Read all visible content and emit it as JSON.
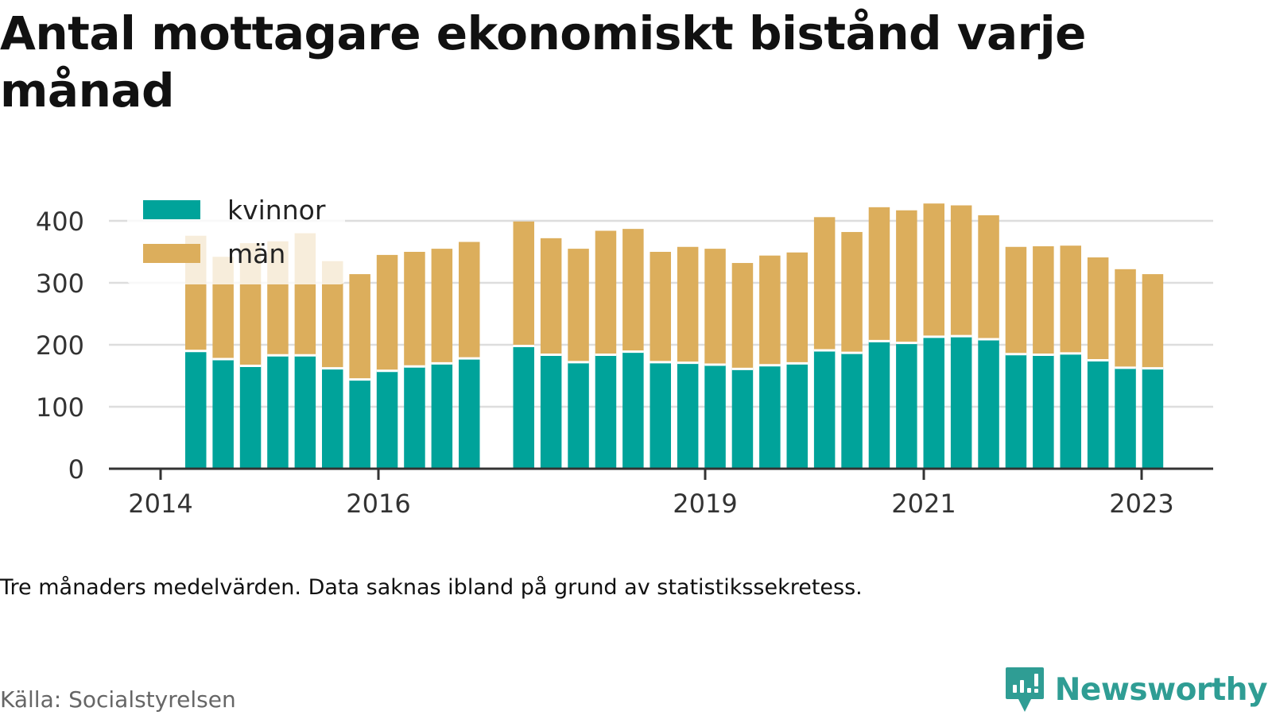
{
  "header": {
    "title": "Antal mottagare ekonomiskt bistånd varje månad"
  },
  "caption": "Tre månaders medelvärden. Data saknas ibland på grund av statistikssekretess.",
  "source": "Källa: Socialstyrelsen",
  "brand": {
    "name": "Newsworthy",
    "icon": "newsworthy-logo-icon",
    "color": "#2f9d94"
  },
  "chart_data": {
    "type": "bar",
    "stacked": true,
    "x_tick_labels": [
      "2014",
      "2016",
      "2019",
      "2021",
      "2023"
    ],
    "y_ticks": [
      0,
      100,
      200,
      300,
      400
    ],
    "ylim": [
      0,
      440
    ],
    "grid": true,
    "legend_position": "top-left",
    "series": [
      {
        "name": "kvinnor",
        "color": "#00a39a",
        "values": [
          190,
          177,
          166,
          183,
          183,
          162,
          144,
          158,
          165,
          170,
          178,
          198,
          184,
          172,
          184,
          189,
          172,
          171,
          168,
          161,
          167,
          170,
          191,
          187,
          206,
          203,
          213,
          214,
          209,
          185,
          184,
          186,
          175,
          163,
          162
        ]
      },
      {
        "name": "män",
        "color": "#dcae5c",
        "values": [
          186,
          165,
          198,
          184,
          197,
          173,
          170,
          187,
          185,
          185,
          188,
          201,
          188,
          183,
          200,
          198,
          178,
          187,
          187,
          171,
          177,
          179,
          215,
          195,
          216,
          214,
          215,
          211,
          200,
          173,
          175,
          174,
          166,
          159,
          152
        ]
      }
    ]
  }
}
